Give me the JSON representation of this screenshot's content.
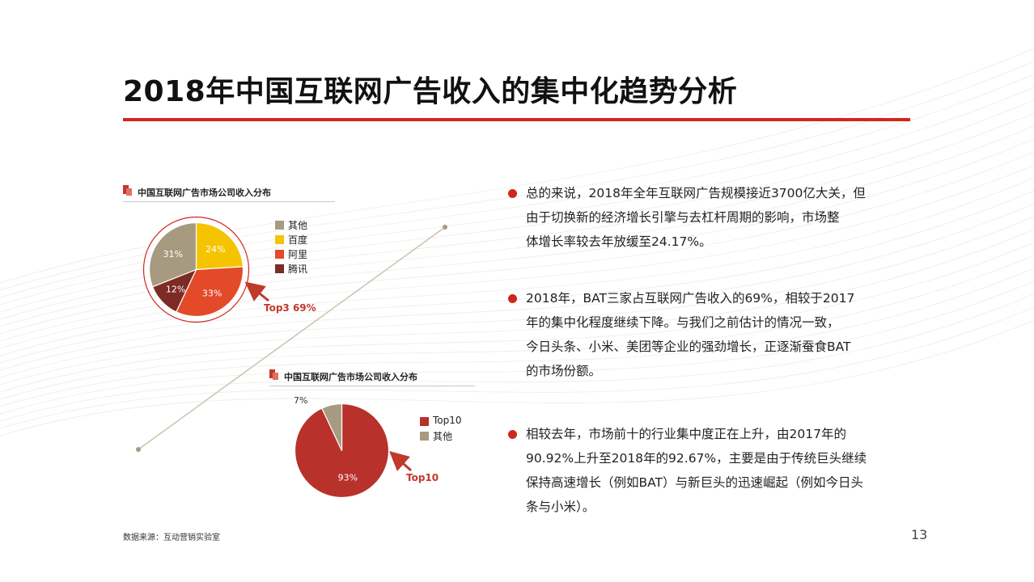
{
  "page": {
    "title": "2018年中国互联网广告收入的集中化趋势分析",
    "source": "数据来源：互动营销实验室",
    "page_number": "13"
  },
  "colors": {
    "accent": "#d0271d",
    "other": "#a89a80",
    "baidu": "#f5c400",
    "ali": "#e24a2a",
    "tencent": "#7c2b25",
    "top10": "#b8312a"
  },
  "charts": [
    {
      "heading": "中国互联网广告市场公司收入分布",
      "callout": "Top3 69%"
    },
    {
      "heading": "中国互联网广告市场公司收入分布",
      "callout": "Top10"
    }
  ],
  "chart_data": [
    {
      "type": "pie",
      "categories": [
        "其他",
        "百度",
        "阿里",
        "腾讯"
      ],
      "values": [
        31,
        24,
        33,
        12
      ],
      "labels": [
        "31%",
        "24%",
        "33%",
        "12%"
      ],
      "legend": "right"
    },
    {
      "type": "pie",
      "categories": [
        "Top10",
        "其他"
      ],
      "values": [
        93,
        7
      ],
      "labels": [
        "93%",
        "7%"
      ],
      "legend": "right"
    }
  ],
  "bullets": [
    {
      "lines": [
        "总的来说，2018年全年互联网广告规模接近3700亿大关，但",
        "由于切换新的经济增长引擎与去杠杆周期的影响，市场整",
        "体增长率较去年放缓至24.17%。"
      ]
    },
    {
      "lines": [
        "2018年，BAT三家占互联网广告收入的69%，相较于2017",
        "年的集中化程度继续下降。与我们之前估计的情况一致，",
        "今日头条、小米、美团等企业的强劲增长，正逐渐蚕食BAT",
        "的市场份额。"
      ]
    },
    {
      "lines": [
        "相较去年，市场前十的行业集中度正在上升，由2017年的",
        "90.92%上升至2018年的92.67%，主要是由于传统巨头继续",
        "保持高速增长（例如BAT）与新巨头的迅速崛起（例如今日头",
        "条与小米）。"
      ]
    }
  ]
}
